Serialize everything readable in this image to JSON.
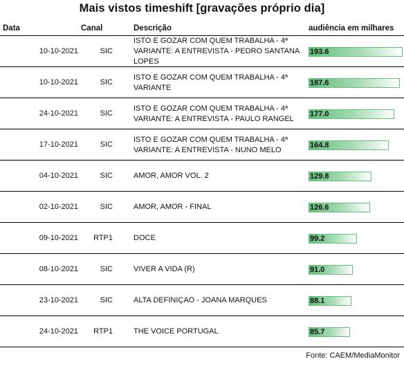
{
  "title": "Mais vistos timeshift [gravações próprio dia]",
  "headers": {
    "data": "Data",
    "canal": "Canal",
    "descricao": "Descrição",
    "audiencia": "audiência em milhares"
  },
  "source": "Fonte: CAEM/MediaMonitor",
  "colors": {
    "bar": "#63be7b",
    "bar_light": "#ffffff"
  },
  "chart_data": {
    "type": "table",
    "title": "Mais vistos timeshift [gravações próprio dia]",
    "columns": [
      "Data",
      "Canal",
      "Descrição",
      "audiência em milhares"
    ],
    "value_max": 193.6,
    "rows": [
      {
        "date": "10-10-2021",
        "canal": "SIC",
        "desc": [
          "ISTO E GOZAR COM QUEM TRABALHA - 4ª",
          "VARIANTE: A ENTREVISTA - PEDRO SANTANA",
          "LOPES"
        ],
        "value": 193.6
      },
      {
        "date": "10-10-2021",
        "canal": "SIC",
        "desc": [
          "ISTO E GOZAR COM QUEM TRABALHA - 4ª",
          "VARIANTE"
        ],
        "value": 187.6
      },
      {
        "date": "24-10-2021",
        "canal": "SIC",
        "desc": [
          "ISTO E GOZAR COM QUEM TRABALHA - 4ª",
          "VARIANTE: A ENTREVISTA - PAULO RANGEL"
        ],
        "value": 177.0
      },
      {
        "date": "17-10-2021",
        "canal": "SIC",
        "desc": [
          "ISTO E GOZAR COM QUEM TRABALHA - 4ª",
          "VARIANTE: A ENTREVISTA - NUNO MELO"
        ],
        "value": 164.8
      },
      {
        "date": "04-10-2021",
        "canal": "SIC",
        "desc": [
          "AMOR, AMOR VOL. 2"
        ],
        "value": 129.8
      },
      {
        "date": "02-10-2021",
        "canal": "SIC",
        "desc": [
          "AMOR, AMOR - FINAL"
        ],
        "value": 126.6
      },
      {
        "date": "09-10-2021",
        "canal": "RTP1",
        "desc": [
          "DOCE"
        ],
        "value": 99.2
      },
      {
        "date": "08-10-2021",
        "canal": "SIC",
        "desc": [
          "VIVER A VIDA (R)"
        ],
        "value": 91.0
      },
      {
        "date": "23-10-2021",
        "canal": "SIC",
        "desc": [
          "ALTA DEFINIÇAO - JOANA MARQUES"
        ],
        "value": 88.1
      },
      {
        "date": "24-10-2021",
        "canal": "RTP1",
        "desc": [
          "THE VOICE PORTUGAL"
        ],
        "value": 85.7
      }
    ]
  }
}
